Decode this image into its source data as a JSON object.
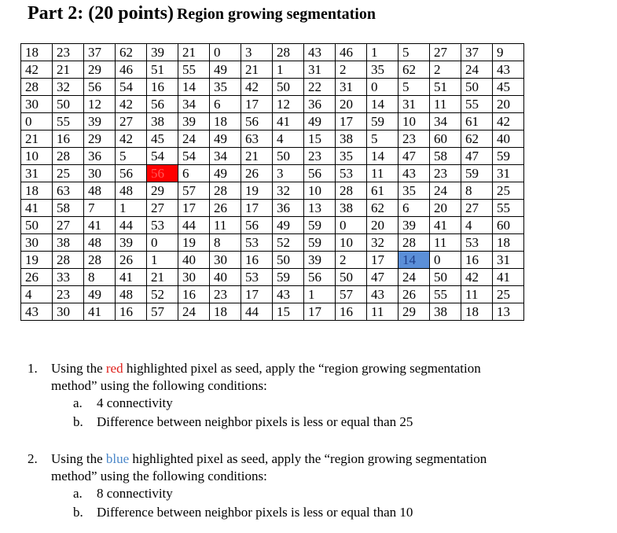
{
  "title": {
    "part": "Part 2: (20 points)",
    "subject": "Region growing segmentation"
  },
  "colors": {
    "seed_red": "#ff0000",
    "seed_blue": "#5b8fd8",
    "red_text": "#e0201b",
    "blue_text": "#4a86c8"
  },
  "grid": [
    [
      18,
      23,
      37,
      62,
      39,
      21,
      0,
      3,
      28,
      43,
      46,
      1,
      5,
      27,
      37,
      9
    ],
    [
      42,
      21,
      29,
      46,
      51,
      55,
      49,
      21,
      1,
      31,
      2,
      35,
      62,
      2,
      24,
      43
    ],
    [
      28,
      32,
      56,
      54,
      16,
      14,
      35,
      42,
      50,
      22,
      31,
      0,
      5,
      51,
      50,
      45
    ],
    [
      30,
      50,
      12,
      42,
      56,
      34,
      6,
      17,
      12,
      36,
      20,
      14,
      31,
      11,
      55,
      20
    ],
    [
      0,
      55,
      39,
      27,
      38,
      39,
      18,
      56,
      41,
      49,
      17,
      59,
      10,
      34,
      61,
      42
    ],
    [
      21,
      16,
      29,
      42,
      45,
      24,
      49,
      63,
      4,
      15,
      38,
      5,
      23,
      60,
      62,
      40
    ],
    [
      10,
      28,
      36,
      5,
      54,
      54,
      34,
      21,
      50,
      23,
      35,
      14,
      47,
      58,
      47,
      59
    ],
    [
      31,
      25,
      30,
      56,
      56,
      6,
      49,
      26,
      3,
      56,
      53,
      11,
      43,
      23,
      59,
      31
    ],
    [
      18,
      63,
      48,
      48,
      29,
      57,
      28,
      19,
      32,
      10,
      28,
      61,
      35,
      24,
      8,
      25
    ],
    [
      41,
      58,
      7,
      1,
      27,
      17,
      26,
      17,
      36,
      13,
      38,
      62,
      6,
      20,
      27,
      55
    ],
    [
      50,
      27,
      41,
      44,
      53,
      44,
      11,
      56,
      49,
      59,
      0,
      20,
      39,
      41,
      4,
      60
    ],
    [
      30,
      38,
      48,
      39,
      0,
      19,
      8,
      53,
      52,
      59,
      10,
      32,
      28,
      11,
      53,
      18
    ],
    [
      19,
      28,
      28,
      26,
      1,
      40,
      30,
      16,
      50,
      39,
      2,
      17,
      14,
      0,
      16,
      31
    ],
    [
      26,
      33,
      8,
      41,
      21,
      30,
      40,
      53,
      59,
      56,
      50,
      47,
      24,
      50,
      42,
      41
    ],
    [
      4,
      23,
      49,
      48,
      52,
      16,
      23,
      17,
      43,
      1,
      57,
      43,
      26,
      55,
      11,
      25
    ],
    [
      43,
      30,
      41,
      16,
      57,
      24,
      18,
      44,
      15,
      17,
      16,
      11,
      29,
      38,
      18,
      13
    ]
  ],
  "seeds": {
    "red": {
      "row": 7,
      "col": 4
    },
    "blue": {
      "row": 12,
      "col": 12
    }
  },
  "questions": [
    {
      "number": "1.",
      "text_before": "Using the ",
      "highlight": "red",
      "text_after": " highlighted pixel as seed, apply  the “region growing segmentation",
      "line2": "method” using the following conditions:",
      "conditions": [
        {
          "label": "a.",
          "text": "4 connectivity"
        },
        {
          "label": "b.",
          "text": "Difference between neighbor pixels is less or equal than 25"
        }
      ]
    },
    {
      "number": "2.",
      "text_before": "Using the ",
      "highlight": "blue",
      "text_after": "  highlighted pixel as seed, apply  the “region growing segmentation",
      "line2": "method” using the following conditions:",
      "conditions": [
        {
          "label": "a.",
          "text": "8 connectivity"
        },
        {
          "label": "b.",
          "text": "Difference between neighbor pixels is less or equal than 10"
        }
      ]
    }
  ]
}
